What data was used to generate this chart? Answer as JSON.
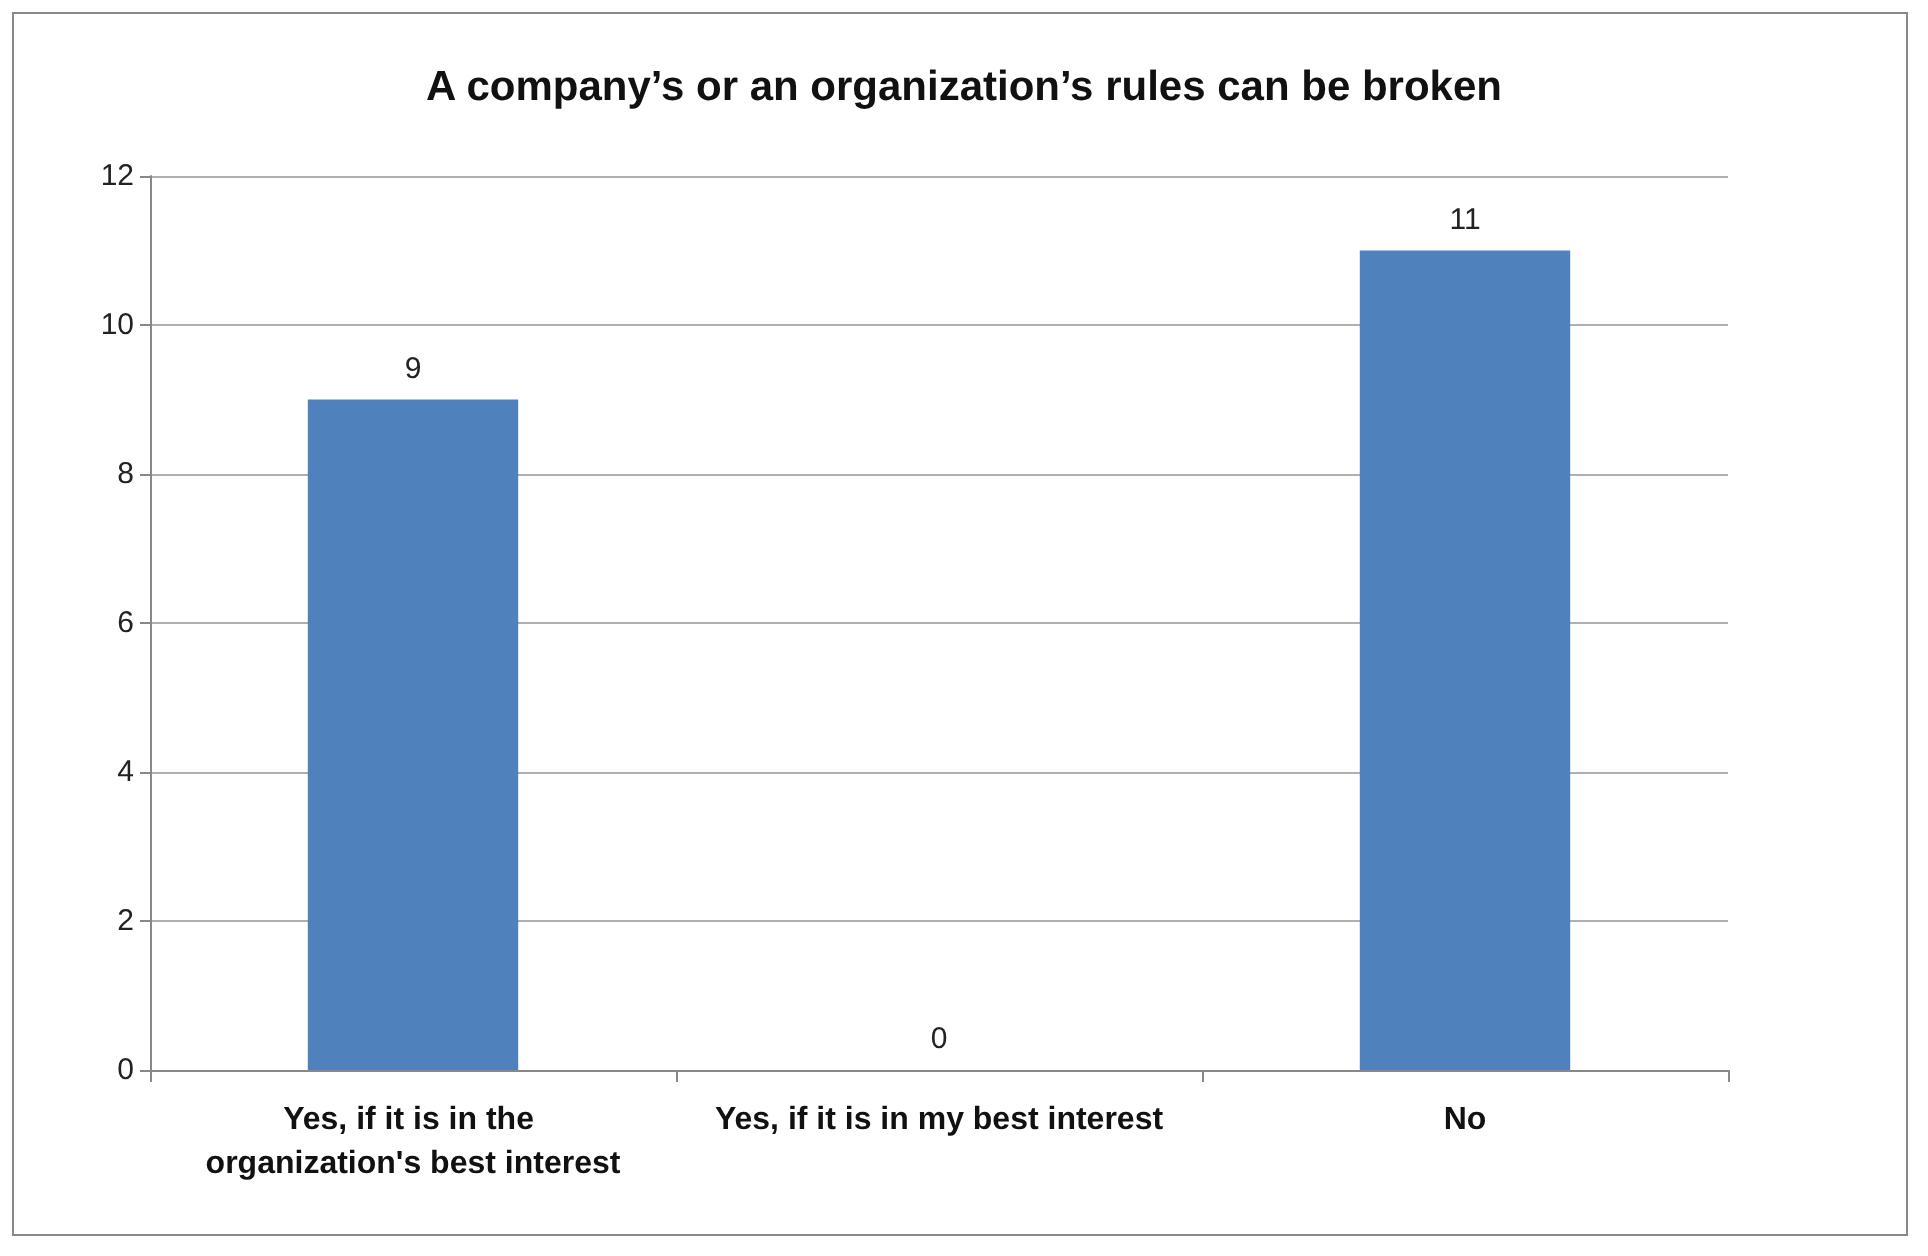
{
  "chart_data": {
    "type": "bar",
    "title": "A company’s or an organization’s rules can be broken",
    "categories": [
      "Yes, if it is in the organization's best interest",
      "Yes, if it is in my best interest",
      "No"
    ],
    "values": [
      9,
      0,
      11
    ],
    "color": "#4f81bd",
    "ylim": [
      0,
      12
    ],
    "yticks": [
      0,
      2,
      4,
      6,
      8,
      10,
      12
    ],
    "grid": "y",
    "data_labels": true
  }
}
